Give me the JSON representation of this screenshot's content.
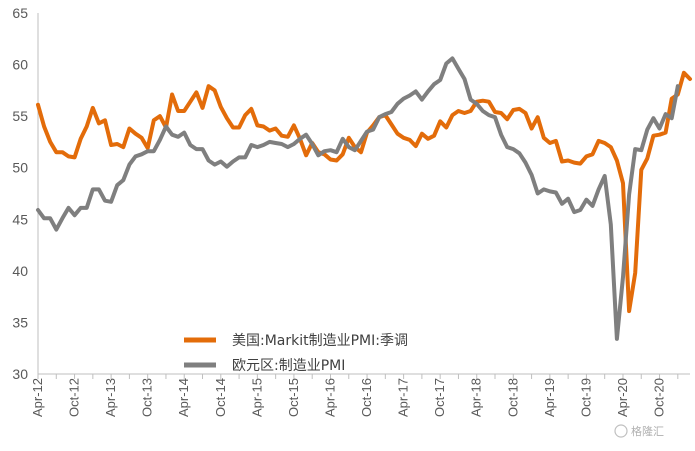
{
  "chart_data": {
    "type": "line",
    "x_start": "2012-04",
    "x_tick_labels": [
      "Apr-12",
      "Oct-12",
      "Apr-13",
      "Oct-13",
      "Apr-14",
      "Oct-14",
      "Apr-15",
      "Oct-15",
      "Apr-16",
      "Oct-16",
      "Apr-17",
      "Oct-17",
      "Apr-18",
      "Oct-18",
      "Apr-19",
      "Oct-19",
      "Apr-20",
      "Oct-20"
    ],
    "ylim": [
      30,
      65
    ],
    "y_ticks": [
      30,
      35,
      40,
      45,
      50,
      55,
      60,
      65
    ],
    "grid": false,
    "legend_position": "bottom-left",
    "series": [
      {
        "name": "美国:Markit制造业PMI:季调",
        "color": "#E36C0A",
        "values": [
          56.1,
          54.0,
          52.5,
          51.5,
          51.5,
          51.1,
          51.0,
          52.8,
          54.0,
          55.8,
          54.3,
          54.6,
          52.2,
          52.3,
          52.0,
          53.8,
          53.3,
          52.9,
          51.9,
          54.6,
          55.0,
          53.9,
          57.1,
          55.5,
          55.5,
          56.4,
          57.3,
          55.8,
          57.9,
          57.5,
          55.9,
          54.8,
          53.9,
          53.9,
          55.1,
          55.7,
          54.1,
          54.0,
          53.6,
          53.8,
          53.1,
          53.0,
          54.1,
          52.8,
          51.2,
          52.4,
          51.5,
          51.3,
          50.8,
          50.7,
          51.3,
          52.9,
          52.0,
          51.5,
          53.4,
          54.1,
          54.9,
          55.1,
          54.2,
          53.3,
          52.9,
          52.7,
          52.1,
          53.3,
          52.8,
          53.1,
          54.5,
          53.9,
          55.1,
          55.5,
          55.3,
          55.5,
          56.4,
          56.5,
          56.4,
          55.4,
          55.3,
          54.7,
          55.6,
          55.7,
          55.3,
          53.8,
          54.9,
          52.9,
          52.4,
          52.6,
          50.6,
          50.7,
          50.5,
          50.4,
          51.1,
          51.3,
          52.6,
          52.4,
          52.0,
          50.7,
          48.5,
          36.1,
          39.8,
          49.8,
          50.9,
          53.1,
          53.2,
          53.4,
          56.7,
          57.1,
          59.2,
          58.6
        ]
      },
      {
        "name": "欧元区:制造业PMI",
        "color": "#7F7F7F",
        "values": [
          45.9,
          45.1,
          45.1,
          44.0,
          45.1,
          46.1,
          45.4,
          46.1,
          46.1,
          47.9,
          47.9,
          46.8,
          46.7,
          48.3,
          48.8,
          50.3,
          51.1,
          51.3,
          51.6,
          51.6,
          52.7,
          54.0,
          53.2,
          53.0,
          53.4,
          52.2,
          51.8,
          51.8,
          50.7,
          50.3,
          50.6,
          50.1,
          50.6,
          51.0,
          51.0,
          52.2,
          52.0,
          52.2,
          52.5,
          52.4,
          52.3,
          52.0,
          52.3,
          52.8,
          53.2,
          52.3,
          51.2,
          51.6,
          51.7,
          51.5,
          52.8,
          52.0,
          51.7,
          52.6,
          53.5,
          53.7,
          54.9,
          55.2,
          55.4,
          56.2,
          56.7,
          57.0,
          57.4,
          56.6,
          57.4,
          58.1,
          58.5,
          60.1,
          60.6,
          59.6,
          58.6,
          56.6,
          56.2,
          55.5,
          55.1,
          54.9,
          53.2,
          52.0,
          51.8,
          51.4,
          50.5,
          49.3,
          47.5,
          47.9,
          47.7,
          47.6,
          46.5,
          47.0,
          45.7,
          45.9,
          46.9,
          46.3,
          47.9,
          49.2,
          44.5,
          33.4,
          39.4,
          47.4,
          51.8,
          51.7,
          53.7,
          54.8,
          53.8,
          55.2,
          54.8,
          57.9
        ]
      }
    ]
  },
  "watermark": "格隆汇"
}
